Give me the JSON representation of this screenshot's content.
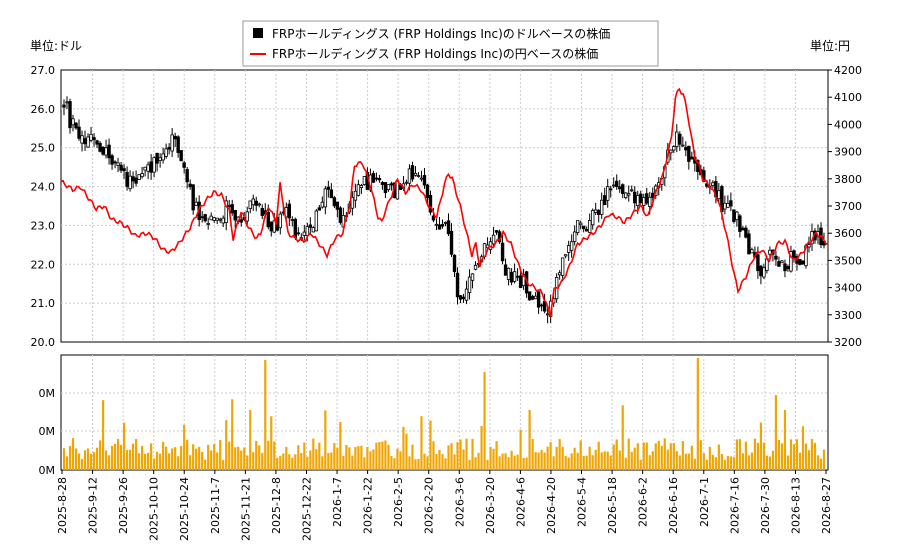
{
  "chart_data": {
    "type": "candlestick",
    "legend": {
      "placement": "top-center",
      "entries": [
        {
          "label": "FRPホールディングス (FRP Holdings Inc)のドルベースの株価",
          "color": "#000000",
          "marker": "square"
        },
        {
          "label": "FRPホールディングス (FRP Holdings Inc)の円ベースの株価",
          "color": "#ff0000",
          "marker": "line"
        }
      ]
    },
    "left_unit": "単位:ドル",
    "right_unit": "単位:円",
    "y_left": {
      "min": 20.0,
      "max": 27.0,
      "ticks": [
        "20.0",
        "21.0",
        "22.0",
        "23.0",
        "24.0",
        "25.0",
        "26.0",
        "27.0"
      ]
    },
    "y_right": {
      "min": 3200,
      "max": 4200,
      "ticks": [
        "3200",
        "3300",
        "3400",
        "3500",
        "3600",
        "3700",
        "3800",
        "3900",
        "4000",
        "4100",
        "4200"
      ]
    },
    "volume_axis": {
      "ticks": [
        "0M",
        "0M",
        "0M"
      ]
    },
    "x_ticks": [
      "2025-8-28",
      "2025-9-12",
      "2025-9-26",
      "2025-10-10",
      "2025-10-24",
      "2025-11-7",
      "2025-11-21",
      "2025-12-8",
      "2025-12-22",
      "2026-1-7",
      "2026-1-22",
      "2026-2-5",
      "2026-2-20",
      "2026-3-6",
      "2026-3-20",
      "2026-4-6",
      "2026-4-20",
      "2026-5-4",
      "2026-5-18",
      "2026-6-2",
      "2026-6-16",
      "2026-7-1",
      "2026-7-16",
      "2026-7-30",
      "2026-8-13",
      "2026-8-27"
    ],
    "colors": {
      "up": "#ffffff",
      "down": "#000000",
      "yen_line": "#ff0000",
      "volume": "#f0a500",
      "grid": "#cccccc"
    },
    "grid": true,
    "days": 254,
    "close_path": [
      [
        0,
        26.2
      ],
      [
        4,
        25.6
      ],
      [
        10,
        25.3
      ],
      [
        16,
        25.2
      ],
      [
        22,
        24.9
      ],
      [
        28,
        24.5
      ],
      [
        34,
        24.1
      ],
      [
        40,
        24.3
      ],
      [
        46,
        24.5
      ],
      [
        52,
        25.0
      ],
      [
        56,
        25.3
      ],
      [
        60,
        24.7
      ],
      [
        64,
        24.0
      ],
      [
        68,
        23.4
      ],
      [
        72,
        23.1
      ],
      [
        76,
        23.4
      ],
      [
        80,
        23.0
      ],
      [
        84,
        23.6
      ],
      [
        88,
        23.2
      ],
      [
        92,
        23.1
      ],
      [
        96,
        23.5
      ],
      [
        102,
        23.4
      ],
      [
        108,
        23.0
      ],
      [
        112,
        23.2
      ],
      [
        116,
        23.3
      ],
      [
        120,
        22.8
      ],
      [
        124,
        22.8
      ],
      [
        128,
        23.0
      ],
      [
        132,
        23.3
      ],
      [
        136,
        23.9
      ],
      [
        140,
        23.5
      ],
      [
        144,
        23.1
      ],
      [
        148,
        23.6
      ],
      [
        152,
        24.0
      ],
      [
        158,
        24.1
      ],
      [
        164,
        24.0
      ],
      [
        168,
        23.8
      ],
      [
        172,
        24.0
      ],
      [
        176,
        24.2
      ],
      [
        180,
        24.3
      ],
      [
        184,
        24.2
      ],
      [
        188,
        23.4
      ],
      [
        192,
        22.8
      ],
      [
        196,
        23.0
      ],
      [
        200,
        22.3
      ],
      [
        202,
        21.7
      ],
      [
        204,
        20.9
      ],
      [
        208,
        21.5
      ],
      [
        212,
        21.8
      ],
      [
        216,
        22.3
      ],
      [
        220,
        22.6
      ],
      [
        224,
        22.6
      ],
      [
        228,
        21.8
      ],
      [
        232,
        21.6
      ],
      [
        236,
        21.6
      ],
      [
        240,
        21.3
      ],
      [
        244,
        21.0
      ],
      [
        248,
        20.8
      ],
      [
        252,
        21.1
      ],
      [
        256,
        21.8
      ],
      [
        260,
        22.4
      ],
      [
        264,
        22.9
      ],
      [
        268,
        23.0
      ],
      [
        272,
        23.2
      ],
      [
        276,
        23.4
      ],
      [
        280,
        23.8
      ],
      [
        284,
        24.1
      ],
      [
        288,
        24.0
      ],
      [
        292,
        23.9
      ],
      [
        296,
        23.7
      ],
      [
        300,
        23.5
      ],
      [
        304,
        23.9
      ],
      [
        308,
        24.2
      ],
      [
        312,
        24.9
      ],
      [
        316,
        25.3
      ],
      [
        320,
        25.1
      ],
      [
        324,
        24.6
      ],
      [
        328,
        24.3
      ],
      [
        332,
        24.0
      ],
      [
        336,
        23.9
      ],
      [
        340,
        23.5
      ],
      [
        344,
        23.3
      ],
      [
        348,
        23.1
      ],
      [
        352,
        22.7
      ],
      [
        356,
        22.0
      ],
      [
        360,
        21.9
      ],
      [
        364,
        22.2
      ],
      [
        368,
        22.1
      ],
      [
        372,
        22.0
      ],
      [
        376,
        22.3
      ],
      [
        380,
        22.1
      ],
      [
        384,
        22.4
      ],
      [
        388,
        22.9
      ],
      [
        390,
        22.3
      ],
      [
        392,
        22.4
      ]
    ],
    "yen_path": [
      [
        0,
        3790
      ],
      [
        6,
        3760
      ],
      [
        10,
        3770
      ],
      [
        14,
        3730
      ],
      [
        18,
        3690
      ],
      [
        22,
        3700
      ],
      [
        26,
        3650
      ],
      [
        30,
        3640
      ],
      [
        34,
        3620
      ],
      [
        38,
        3590
      ],
      [
        44,
        3600
      ],
      [
        48,
        3580
      ],
      [
        52,
        3540
      ],
      [
        56,
        3530
      ],
      [
        58,
        3545
      ],
      [
        60,
        3560
      ],
      [
        62,
        3580
      ],
      [
        66,
        3620
      ],
      [
        70,
        3680
      ],
      [
        74,
        3720
      ],
      [
        78,
        3750
      ],
      [
        82,
        3740
      ],
      [
        86,
        3680
      ],
      [
        88,
        3580
      ],
      [
        92,
        3680
      ],
      [
        96,
        3620
      ],
      [
        100,
        3580
      ],
      [
        102,
        3600
      ],
      [
        106,
        3700
      ],
      [
        110,
        3640
      ],
      [
        112,
        3780
      ],
      [
        116,
        3600
      ],
      [
        120,
        3580
      ],
      [
        124,
        3570
      ],
      [
        128,
        3600
      ],
      [
        132,
        3560
      ],
      [
        136,
        3520
      ],
      [
        140,
        3580
      ],
      [
        144,
        3600
      ],
      [
        148,
        3720
      ],
      [
        150,
        3850
      ],
      [
        154,
        3860
      ],
      [
        156,
        3820
      ],
      [
        158,
        3780
      ],
      [
        160,
        3720
      ],
      [
        162,
        3660
      ],
      [
        164,
        3640
      ],
      [
        166,
        3690
      ],
      [
        168,
        3720
      ],
      [
        172,
        3800
      ],
      [
        176,
        3750
      ],
      [
        180,
        3780
      ],
      [
        184,
        3760
      ],
      [
        188,
        3700
      ],
      [
        192,
        3660
      ],
      [
        196,
        3780
      ],
      [
        198,
        3820
      ],
      [
        200,
        3800
      ],
      [
        204,
        3700
      ],
      [
        208,
        3580
      ],
      [
        210,
        3520
      ],
      [
        212,
        3560
      ],
      [
        214,
        3480
      ],
      [
        218,
        3540
      ],
      [
        222,
        3560
      ],
      [
        226,
        3600
      ],
      [
        230,
        3560
      ],
      [
        234,
        3480
      ],
      [
        238,
        3420
      ],
      [
        242,
        3400
      ],
      [
        246,
        3380
      ],
      [
        250,
        3300
      ],
      [
        252,
        3390
      ],
      [
        256,
        3420
      ],
      [
        260,
        3480
      ],
      [
        264,
        3560
      ],
      [
        268,
        3580
      ],
      [
        272,
        3600
      ],
      [
        276,
        3630
      ],
      [
        280,
        3670
      ],
      [
        284,
        3660
      ],
      [
        288,
        3640
      ],
      [
        292,
        3670
      ],
      [
        296,
        3700
      ],
      [
        300,
        3660
      ],
      [
        304,
        3750
      ],
      [
        308,
        3820
      ],
      [
        310,
        3890
      ],
      [
        312,
        3950
      ],
      [
        314,
        4100
      ],
      [
        316,
        4130
      ],
      [
        318,
        4110
      ],
      [
        320,
        4050
      ],
      [
        322,
        3960
      ],
      [
        324,
        3880
      ],
      [
        326,
        3850
      ],
      [
        328,
        3800
      ],
      [
        332,
        3770
      ],
      [
        336,
        3720
      ],
      [
        340,
        3600
      ],
      [
        344,
        3450
      ],
      [
        346,
        3390
      ],
      [
        350,
        3440
      ],
      [
        354,
        3510
      ],
      [
        358,
        3540
      ],
      [
        362,
        3500
      ],
      [
        366,
        3560
      ],
      [
        370,
        3570
      ],
      [
        374,
        3500
      ],
      [
        378,
        3520
      ],
      [
        382,
        3560
      ],
      [
        386,
        3600
      ],
      [
        388,
        3590
      ],
      [
        392,
        3560
      ]
    ]
  }
}
